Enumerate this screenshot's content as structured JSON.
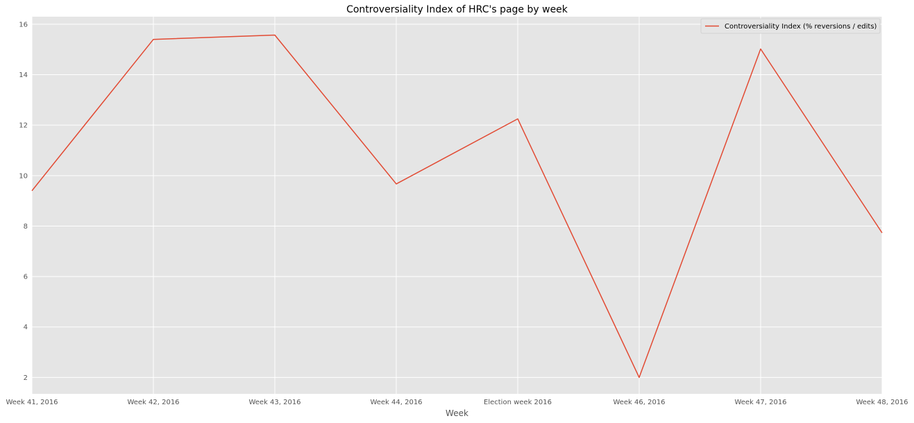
{
  "chart_data": {
    "type": "line",
    "title": "Controversiality Index of HRC's page by week",
    "xlabel": "Week",
    "ylabel": "",
    "categories": [
      "Week 41, 2016",
      "Week 42, 2016",
      "Week 43, 2016",
      "Week 44, 2016",
      "Election week 2016",
      "Week 46, 2016",
      "Week 47, 2016",
      "Week 48, 2016"
    ],
    "series": [
      {
        "name": "Controversiality Index (% reversions / edits)",
        "color": "#e24a33",
        "values": [
          9.4,
          15.4,
          15.57,
          9.67,
          12.25,
          2.0,
          15.02,
          7.73
        ]
      }
    ],
    "ylim": [
      1.35,
      16.3
    ],
    "yticks": [
      2,
      4,
      6,
      8,
      10,
      12,
      14,
      16
    ],
    "grid": true,
    "legend_position": "top-right",
    "background_color": "#e5e5e5",
    "grid_color": "#ffffff"
  }
}
